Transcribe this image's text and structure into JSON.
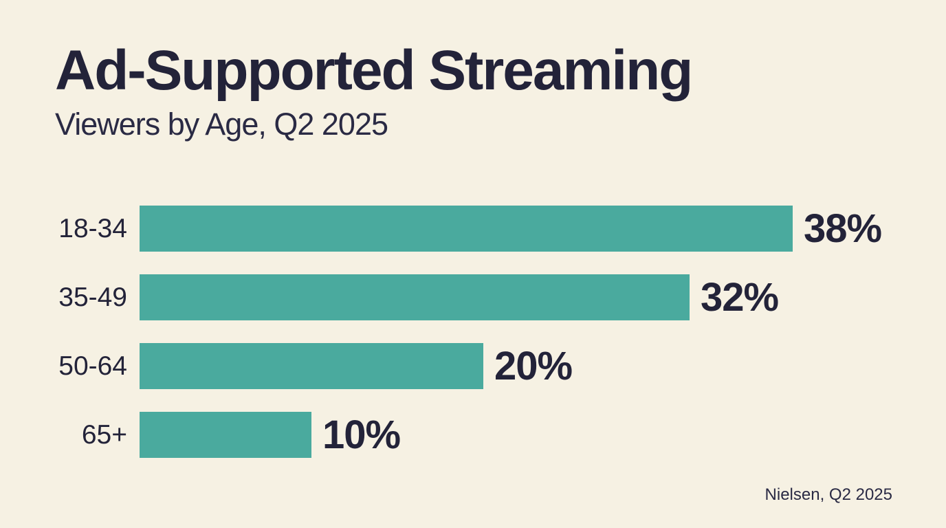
{
  "header": {
    "title": "Ad-Supported Streaming",
    "subtitle": "Viewers by Age, Q2 2025"
  },
  "chart_data": {
    "type": "bar",
    "orientation": "horizontal",
    "title": "Ad-Supported Streaming",
    "subtitle": "Viewers by Age, Q2 2025",
    "categories": [
      "18-34",
      "35-49",
      "50-64",
      "65+"
    ],
    "values": [
      38,
      32,
      20,
      10
    ],
    "value_labels": [
      "38%",
      "32%",
      "20%",
      "10%"
    ],
    "unit": "%",
    "xlabel": "",
    "ylabel": "",
    "xlim": [
      0,
      38
    ],
    "grid": false,
    "legend": false,
    "bar_color": "#4AAA9E",
    "text_color": "#232339",
    "background_color": "#F6F1E3"
  },
  "footer": {
    "source": "Nielsen, Q2 2025"
  },
  "colors": {
    "background": "#F6F1E3",
    "bar": "#4AAA9E",
    "text": "#232339"
  }
}
